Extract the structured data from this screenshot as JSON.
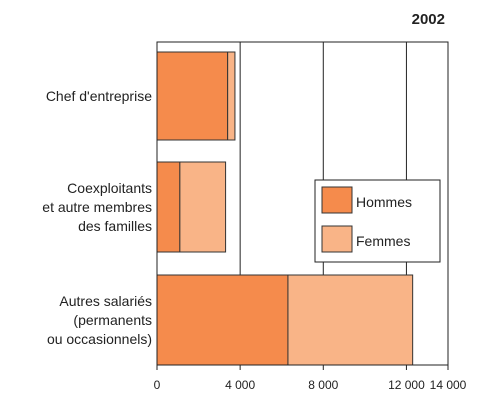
{
  "chart_data": {
    "type": "stacked-barh",
    "title": "2002",
    "categories": [
      "Chef d'entreprise",
      "Coexploitants\net autre membres\ndes familles",
      "Autres salariés\n(permanents\nou occasionnels)"
    ],
    "series": [
      {
        "name": "Hommes",
        "color": "#f58b4c",
        "values": [
          3400,
          1100,
          6300
        ]
      },
      {
        "name": "Femmes",
        "color": "#f9b487",
        "values": [
          350,
          2200,
          6000
        ]
      }
    ],
    "xlim": [
      0,
      14000
    ],
    "xticks": [
      0,
      {
        "value": 4000,
        "label": "4 000"
      },
      {
        "value": 8000,
        "label": "8 000"
      },
      {
        "value": 12000,
        "label": "12 000"
      },
      {
        "value": 14000,
        "label": "14 000"
      }
    ],
    "grid": true,
    "legend": "right"
  }
}
